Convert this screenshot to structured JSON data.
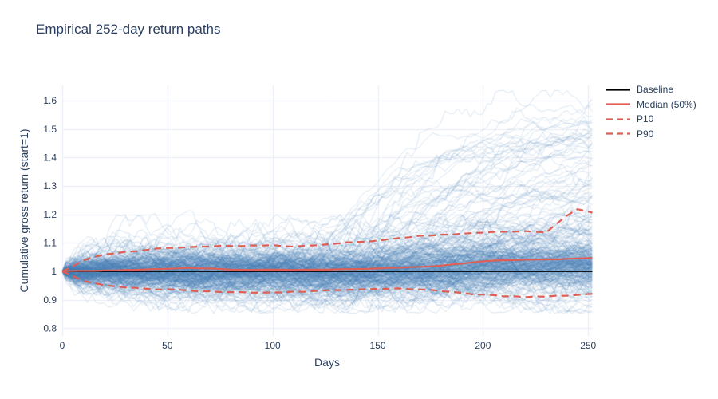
{
  "page": {
    "background": "#ffffff"
  },
  "colors": {
    "title_text": "#2a3f5f",
    "tick_text": "#2a3f5f",
    "grid": "#e9edf6",
    "ensemble_blue": "#4a81ba",
    "percentile_red": "#dd5f55",
    "baseline_black": "#000000"
  },
  "chart_data": {
    "type": "line",
    "title": "Empirical 252-day return paths",
    "xlabel": "Days",
    "ylabel": "Cumulative gross return (start=1)",
    "xlim": [
      0,
      252
    ],
    "ylim": [
      0.773,
      1.653
    ],
    "xticks": [
      0,
      50,
      100,
      150,
      200,
      250
    ],
    "yticks": [
      "0.8",
      "0.9",
      "1",
      "1.1",
      "1.2",
      "1.3",
      "1.4",
      "1.5",
      "1.6"
    ],
    "grid": true,
    "legend_position": "right-outside",
    "x": [
      0,
      10,
      20,
      30,
      40,
      50,
      60,
      70,
      80,
      90,
      100,
      110,
      120,
      130,
      140,
      150,
      160,
      170,
      180,
      190,
      200,
      210,
      220,
      230,
      240,
      245,
      252
    ],
    "series": [
      {
        "name": "Baseline",
        "color": "#000000",
        "dash": "solid",
        "width": 1.8,
        "x": [
          0,
          252
        ],
        "values": [
          1.0,
          1.0
        ]
      },
      {
        "name": "Median (50%)",
        "color": "#dd5f55",
        "dash": "solid",
        "width": 2.2,
        "values": [
          1.0,
          1.002,
          1.003,
          1.005,
          1.007,
          1.009,
          1.012,
          1.01,
          1.006,
          1.005,
          1.006,
          1.005,
          1.006,
          1.007,
          1.008,
          1.01,
          1.013,
          1.016,
          1.02,
          1.027,
          1.035,
          1.039,
          1.041,
          1.042,
          1.044,
          1.045,
          1.047
        ]
      },
      {
        "name": "P10",
        "color": "#dd5f55",
        "dash": "dash",
        "width": 2.2,
        "values": [
          1.0,
          0.966,
          0.951,
          0.943,
          0.939,
          0.937,
          0.933,
          0.93,
          0.927,
          0.925,
          0.926,
          0.929,
          0.931,
          0.934,
          0.936,
          0.938,
          0.94,
          0.936,
          0.93,
          0.924,
          0.918,
          0.912,
          0.909,
          0.911,
          0.914,
          0.917,
          0.921
        ]
      },
      {
        "name": "P90",
        "color": "#dd5f55",
        "dash": "dash",
        "width": 2.2,
        "values": [
          1.0,
          1.038,
          1.058,
          1.068,
          1.075,
          1.082,
          1.085,
          1.087,
          1.089,
          1.091,
          1.092,
          1.087,
          1.091,
          1.097,
          1.103,
          1.108,
          1.117,
          1.125,
          1.129,
          1.132,
          1.136,
          1.139,
          1.141,
          1.136,
          1.196,
          1.218,
          1.206
        ]
      }
    ],
    "ensemble": {
      "description": "simulated empirical return paths (spaghetti)",
      "count": 330,
      "color": "#4a81ba",
      "opacity": 0.25,
      "envelope_upper": [
        1.0,
        1.08,
        1.11,
        1.14,
        1.16,
        1.17,
        1.18,
        1.18,
        1.19,
        1.19,
        1.19,
        1.19,
        1.2,
        1.21,
        1.23,
        1.25,
        1.28,
        1.31,
        1.35,
        1.39,
        1.43,
        1.48,
        1.52,
        1.56,
        1.6,
        1.61,
        1.62
      ],
      "envelope_lower": [
        1.0,
        0.92,
        0.9,
        0.88,
        0.87,
        0.86,
        0.856,
        0.852,
        0.85,
        0.846,
        0.843,
        0.845,
        0.848,
        0.848,
        0.845,
        0.842,
        0.848,
        0.852,
        0.85,
        0.846,
        0.842,
        0.848,
        0.853,
        0.858,
        0.862,
        0.864,
        0.868
      ]
    }
  }
}
